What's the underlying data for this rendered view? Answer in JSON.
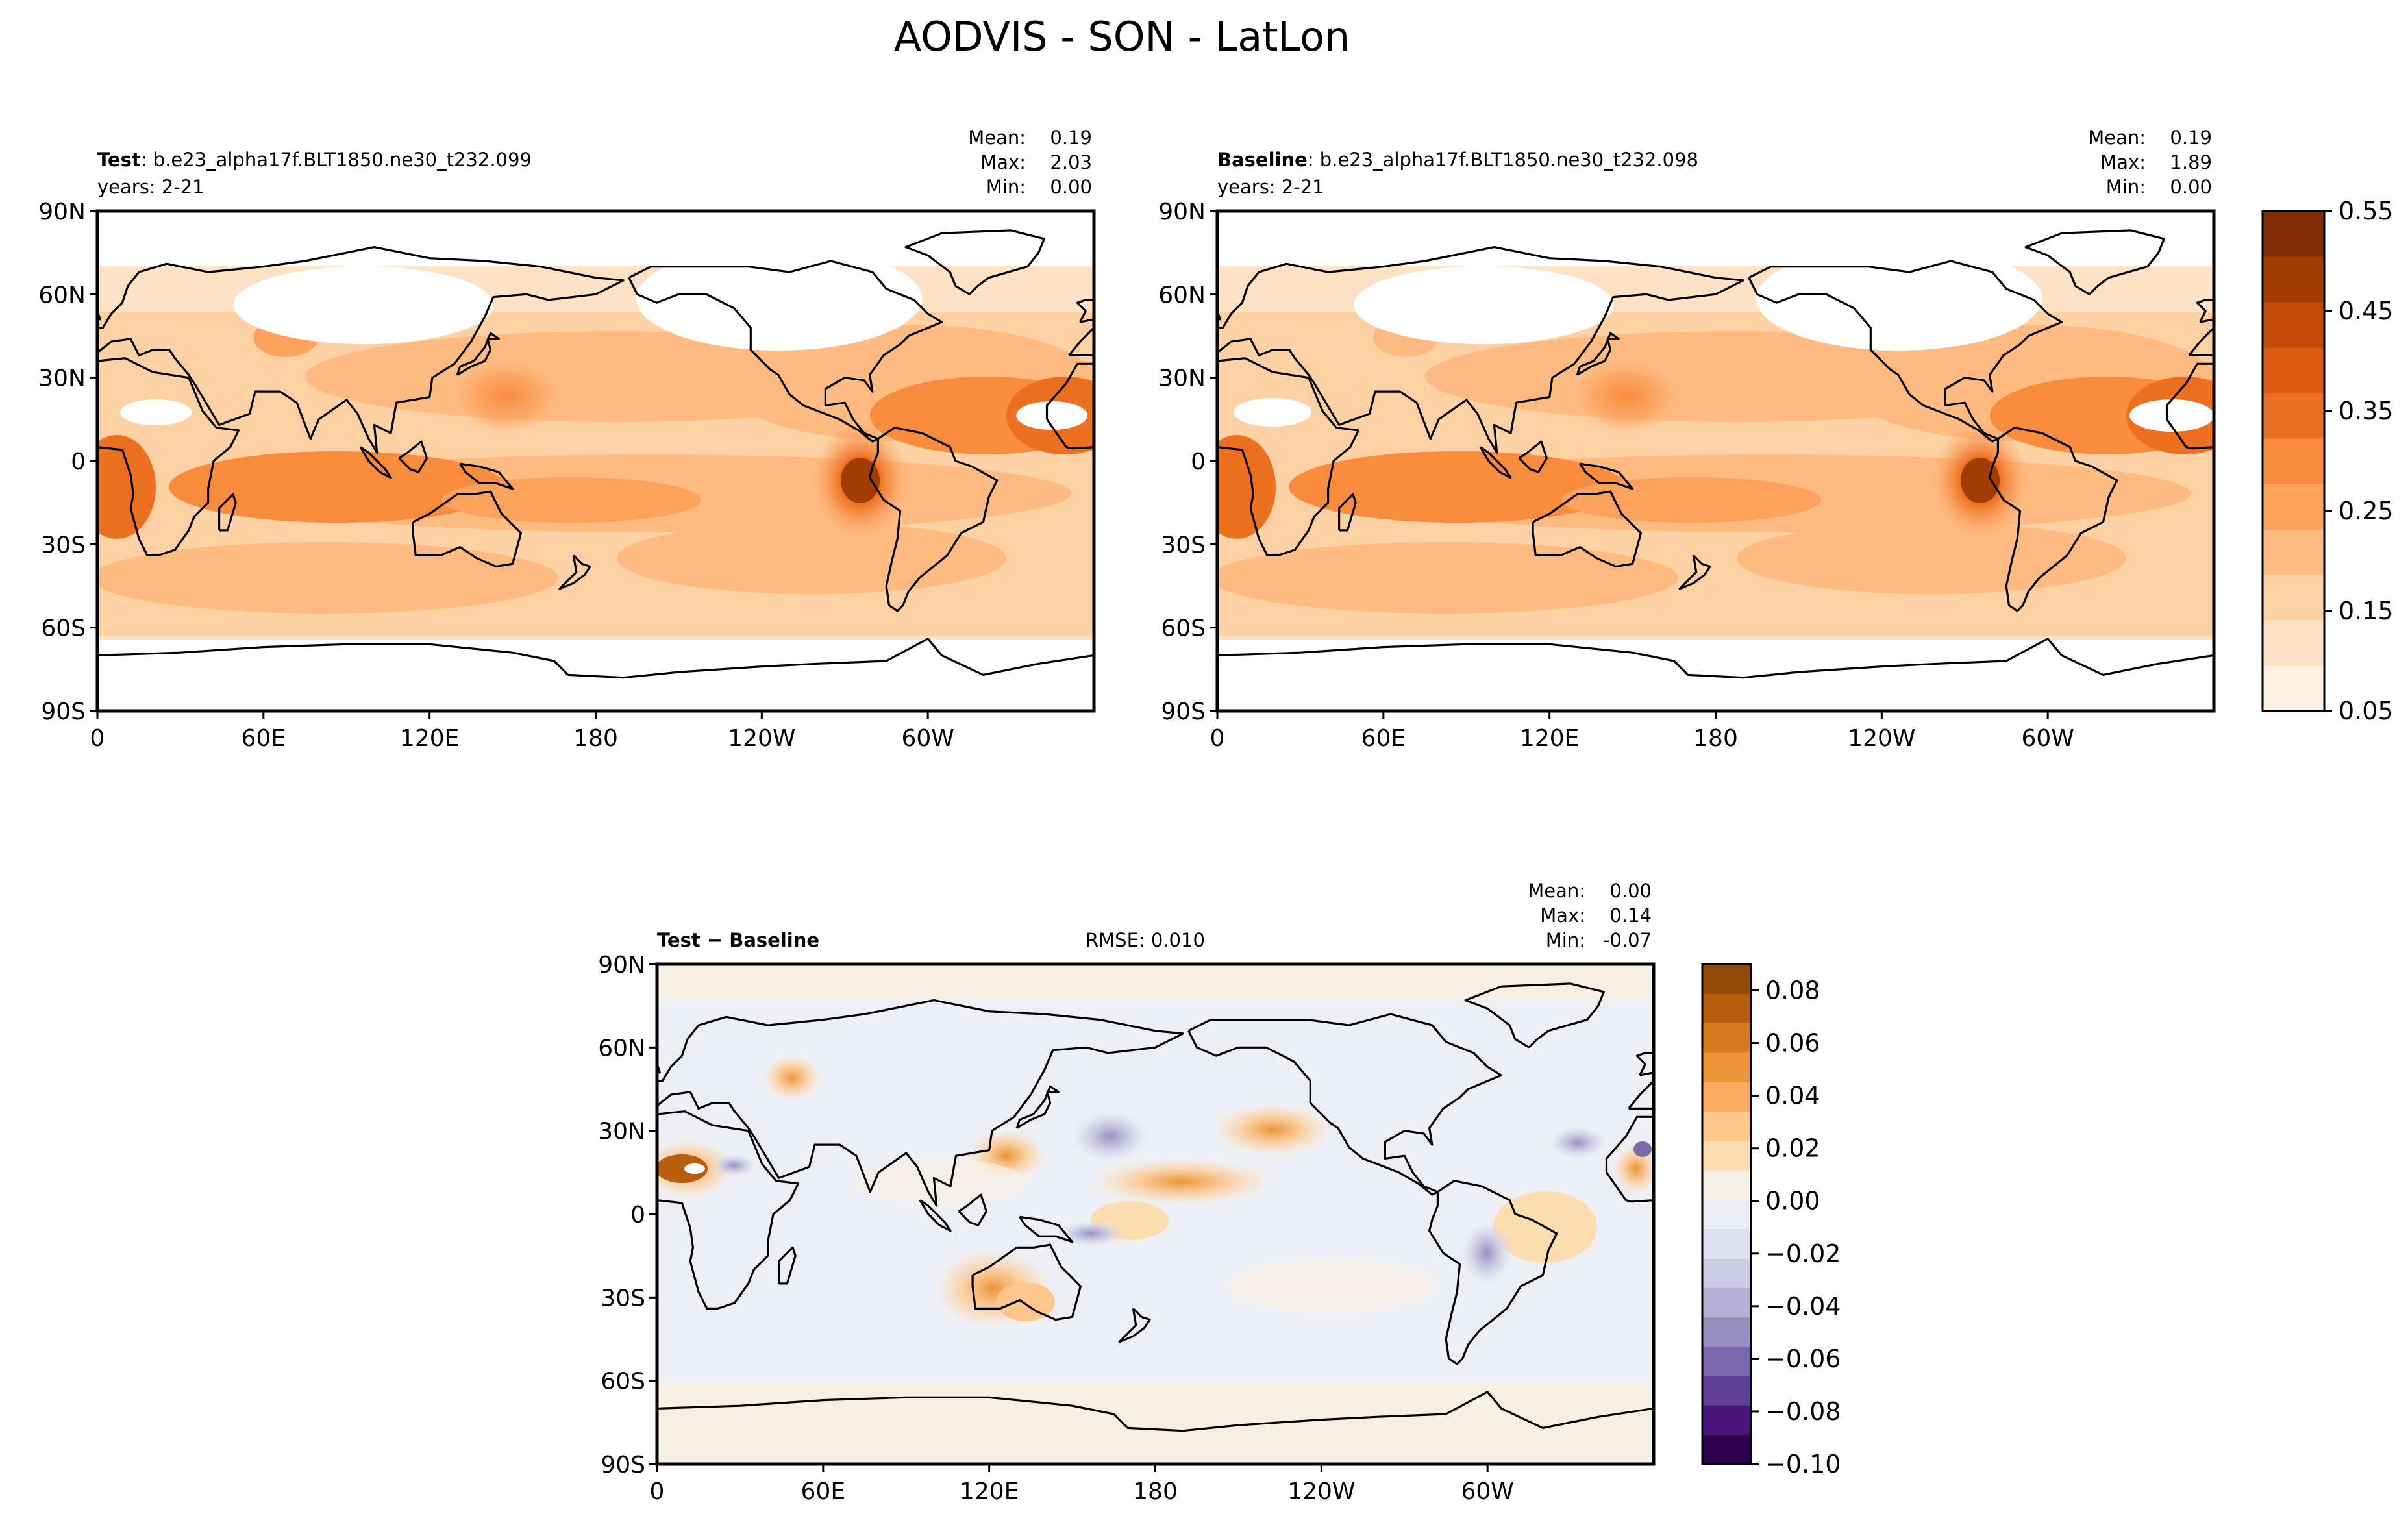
{
  "figure": {
    "title": "AODVIS - SON - LatLon"
  },
  "x_ticks": [
    "0",
    "60E",
    "120E",
    "180",
    "120W",
    "60W"
  ],
  "y_ticks": [
    "90N",
    "60N",
    "30N",
    "0",
    "30S",
    "60S",
    "90S"
  ],
  "chart_data": [
    {
      "type": "heatmap",
      "panel": "test",
      "label_bold": "Test",
      "label_rest": ": b.e23_alpha17f.BLT1850.ne30_t232.099",
      "years": "years: 2-21",
      "stats": {
        "mean_label": "Mean:",
        "mean": "0.19",
        "max_label": "Max:",
        "max": "2.03",
        "min_label": "Min:",
        "min": "0.00"
      },
      "xlim": [
        "0",
        "360"
      ],
      "ylim": [
        "-90",
        "90"
      ]
    },
    {
      "type": "heatmap",
      "panel": "baseline",
      "label_bold": "Baseline",
      "label_rest": ": b.e23_alpha17f.BLT1850.ne30_t232.098",
      "years": "years: 2-21",
      "stats": {
        "mean_label": "Mean:",
        "mean": "0.19",
        "max_label": "Max:",
        "max": "1.89",
        "min_label": "Min:",
        "min": "0.00"
      },
      "xlim": [
        "0",
        "360"
      ],
      "ylim": [
        "-90",
        "90"
      ]
    },
    {
      "type": "heatmap",
      "panel": "difference",
      "label_bold": "Test − Baseline",
      "rmse": "RMSE: 0.010",
      "stats": {
        "mean_label": "Mean:",
        "mean": "0.00",
        "max_label": "Max:",
        "max": "0.14",
        "min_label": "Min:",
        "min": "-0.07"
      },
      "xlim": [
        "0",
        "360"
      ],
      "ylim": [
        "-90",
        "90"
      ]
    }
  ],
  "colorbars": {
    "main": {
      "ticks": [
        "0.05",
        "0.15",
        "0.25",
        "0.35",
        "0.45",
        "0.55"
      ],
      "colors": [
        "#fff0e2",
        "#fee2c6",
        "#fdd1a4",
        "#fdbb81",
        "#fca25d",
        "#f88b3d",
        "#ed7021",
        "#dd5a0c",
        "#c24a04",
        "#a23c03",
        "#7f2c04"
      ]
    },
    "diff": {
      "ticks": [
        "0.08",
        "0.06",
        "0.04",
        "0.02",
        "0.00",
        "−0.02",
        "−0.04",
        "−0.06",
        "−0.08",
        "−0.10"
      ],
      "colors": [
        "#2d004b",
        "#48137a",
        "#5d3f94",
        "#7a6aad",
        "#988fc1",
        "#b4afd3",
        "#cdcbe4",
        "#dfdff0",
        "#ecedf4",
        "#f6efe4",
        "#fddcb0",
        "#fdc68a",
        "#fbab5f",
        "#ec9438",
        "#d67b1d",
        "#b75f0c",
        "#924a06"
      ]
    }
  },
  "palette": {
    "land": "#ffffff",
    "coast": "#000000",
    "diff_bg": "#eeeff4"
  }
}
